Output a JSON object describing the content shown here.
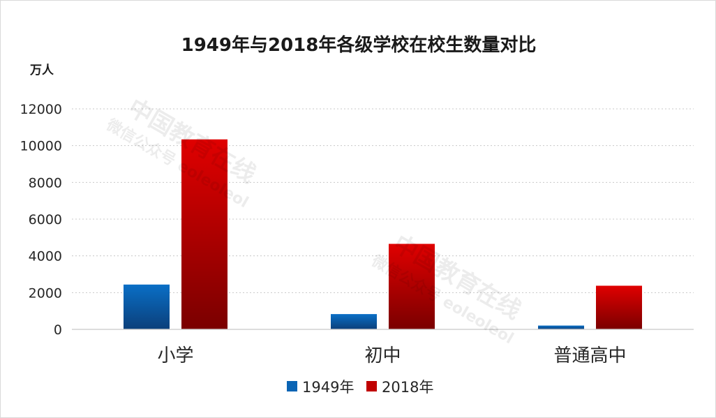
{
  "chart_data": {
    "type": "bar",
    "title": "1949年与2018年各级学校在校生数量对比",
    "unit_label": "万人",
    "categories": [
      "小学",
      "初中",
      "普通高中"
    ],
    "series": [
      {
        "name": "1949年",
        "values": [
          2439,
          832,
          207
        ],
        "color": "#0a64b4"
      },
      {
        "name": "2018年",
        "values": [
          10339,
          4653,
          2375
        ],
        "color": "#c00000"
      }
    ],
    "ylim": [
      0,
      12000
    ],
    "y_ticks": [
      0,
      2000,
      4000,
      6000,
      8000,
      10000,
      12000
    ],
    "grid": true,
    "legend_position": "bottom"
  },
  "watermark": {
    "lines": [
      "中国教育在线",
      "微信公众号 eoleoleol"
    ]
  }
}
